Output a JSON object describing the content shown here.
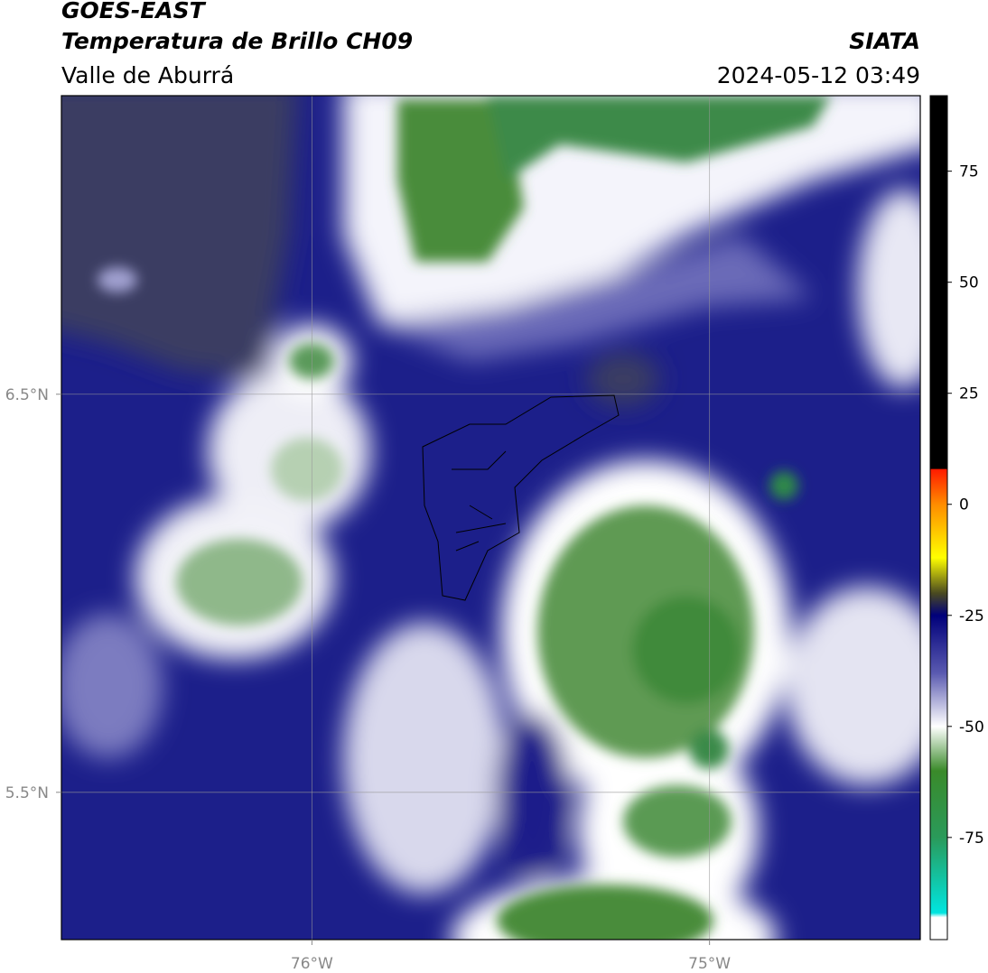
{
  "header": {
    "source": "GOES-EAST",
    "title": "Temperatura de Brillo CH09",
    "brand": "SIATA",
    "region": "Valle de Aburrá",
    "datetime": "2024-05-12 03:49"
  },
  "map": {
    "xlim": [
      -76.63,
      -74.47
    ],
    "ylim": [
      5.13,
      7.25
    ],
    "xticks": [
      {
        "value": -76,
        "label": "76°W"
      },
      {
        "value": -75,
        "label": "75°W"
      }
    ],
    "yticks": [
      {
        "value": 6.5,
        "label": "6.5°N"
      },
      {
        "value": 5.5,
        "label": "5.5°N"
      }
    ],
    "grid": true
  },
  "colorbar": {
    "lim": [
      -98,
      92
    ],
    "ticks": [
      75,
      50,
      25,
      0,
      -25,
      -50,
      -75
    ],
    "color_stops": [
      {
        "value": 92,
        "color": "#000000"
      },
      {
        "value": 8,
        "color": "#000000"
      },
      {
        "value": 7.9,
        "color": "#ff1a00"
      },
      {
        "value": 0,
        "color": "#ff8c00"
      },
      {
        "value": -12,
        "color": "#ffff00"
      },
      {
        "value": -20,
        "color": "#4a4a20"
      },
      {
        "value": -25,
        "color": "#00007a"
      },
      {
        "value": -38,
        "color": "#5a5ab0"
      },
      {
        "value": -50,
        "color": "#ffffff"
      },
      {
        "value": -60,
        "color": "#3a8a2a"
      },
      {
        "value": -75,
        "color": "#2a9a5a"
      },
      {
        "value": -92,
        "color": "#00e5e0"
      },
      {
        "value": -93,
        "color": "#ffffff"
      },
      {
        "value": -98,
        "color": "#ffffff"
      }
    ]
  }
}
